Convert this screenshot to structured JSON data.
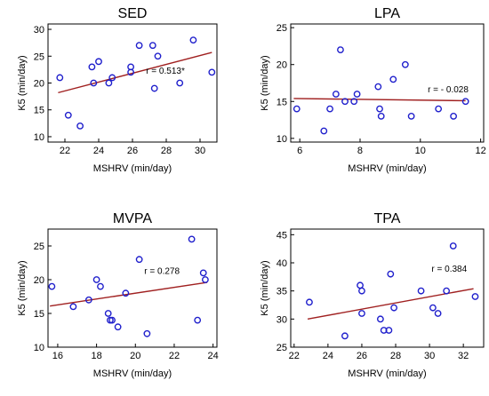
{
  "colors": {
    "points": "#1f1fcc",
    "fit_line": "#a02020"
  },
  "chart_data": [
    {
      "type": "scatter",
      "title": "SED",
      "xlabel": "MSHRV (min/day)",
      "ylabel": "K5 (min/day)",
      "xlim": [
        21,
        31
      ],
      "ylim": [
        9,
        31
      ],
      "xticks": [
        22,
        24,
        26,
        28,
        30
      ],
      "yticks": [
        10,
        15,
        20,
        25,
        30
      ],
      "annotation": "r = 0.513*",
      "fit": [
        [
          21.6,
          18.2
        ],
        [
          30.7,
          25.7
        ]
      ],
      "points": [
        [
          21.7,
          21
        ],
        [
          22.2,
          14
        ],
        [
          22.9,
          12
        ],
        [
          23.6,
          23
        ],
        [
          23.7,
          20
        ],
        [
          24,
          24
        ],
        [
          24.6,
          20
        ],
        [
          24.8,
          21
        ],
        [
          25.9,
          23
        ],
        [
          25.9,
          22
        ],
        [
          26.4,
          27
        ],
        [
          27.2,
          27
        ],
        [
          27.3,
          19
        ],
        [
          27.5,
          25
        ],
        [
          28.8,
          20
        ],
        [
          29.6,
          28
        ],
        [
          30.7,
          22
        ]
      ]
    },
    {
      "type": "scatter",
      "title": "LPA",
      "xlabel": "MSHRV (min/day)",
      "ylabel": "K5 (min/day)",
      "xlim": [
        5.7,
        12.1
      ],
      "ylim": [
        9.5,
        25.5
      ],
      "xticks": [
        6,
        8,
        10,
        12
      ],
      "yticks": [
        10,
        15,
        20,
        25
      ],
      "annotation": "r = - 0.028",
      "fit": [
        [
          5.8,
          15.4
        ],
        [
          11.5,
          15.1
        ]
      ],
      "points": [
        [
          5.9,
          14
        ],
        [
          6.8,
          11
        ],
        [
          7,
          14
        ],
        [
          7.2,
          16
        ],
        [
          7.35,
          22
        ],
        [
          7.5,
          15
        ],
        [
          7.8,
          15
        ],
        [
          7.9,
          16
        ],
        [
          8.6,
          17
        ],
        [
          8.65,
          14
        ],
        [
          8.7,
          13
        ],
        [
          9.1,
          18
        ],
        [
          9.5,
          20
        ],
        [
          9.7,
          13
        ],
        [
          10.6,
          14
        ],
        [
          11.1,
          13
        ],
        [
          11.5,
          15
        ]
      ]
    },
    {
      "type": "scatter",
      "title": "MVPA",
      "xlabel": "MSHRV (min/day)",
      "ylabel": "K5 (min/day)",
      "xlim": [
        15.5,
        24.2
      ],
      "ylim": [
        10,
        27.5
      ],
      "xticks": [
        16,
        18,
        20,
        22,
        24
      ],
      "yticks": [
        10,
        15,
        20,
        25
      ],
      "annotation": "r = 0.278",
      "fit": [
        [
          15.6,
          16.1
        ],
        [
          23.7,
          19.6
        ]
      ],
      "points": [
        [
          15.7,
          19
        ],
        [
          16.8,
          16
        ],
        [
          17.6,
          17
        ],
        [
          18,
          20
        ],
        [
          18.2,
          19
        ],
        [
          18.6,
          15
        ],
        [
          18.7,
          14
        ],
        [
          18.8,
          14
        ],
        [
          19.1,
          13
        ],
        [
          19.5,
          18
        ],
        [
          20.2,
          23
        ],
        [
          20.6,
          12
        ],
        [
          22.9,
          26
        ],
        [
          23.2,
          14
        ],
        [
          23.5,
          21
        ],
        [
          23.6,
          20
        ]
      ]
    },
    {
      "type": "scatter",
      "title": "TPA",
      "xlabel": "MSHRV (min/day)",
      "ylabel": "K5 (min/day)",
      "xlim": [
        21.8,
        33.2
      ],
      "ylim": [
        25,
        46
      ],
      "xticks": [
        22,
        24,
        26,
        28,
        30,
        32
      ],
      "yticks": [
        25,
        30,
        35,
        40,
        45
      ],
      "annotation": "r = 0.384",
      "fit": [
        [
          22.8,
          30
        ],
        [
          32.6,
          35.4
        ]
      ],
      "points": [
        [
          22.9,
          33
        ],
        [
          25,
          27
        ],
        [
          25.9,
          36
        ],
        [
          26,
          35
        ],
        [
          26,
          31
        ],
        [
          27.1,
          30
        ],
        [
          27.3,
          28
        ],
        [
          27.6,
          28
        ],
        [
          27.7,
          38
        ],
        [
          27.9,
          32
        ],
        [
          29.5,
          35
        ],
        [
          30.2,
          32
        ],
        [
          30.5,
          31
        ],
        [
          31,
          35
        ],
        [
          31.4,
          43
        ],
        [
          32.7,
          34
        ]
      ]
    }
  ]
}
